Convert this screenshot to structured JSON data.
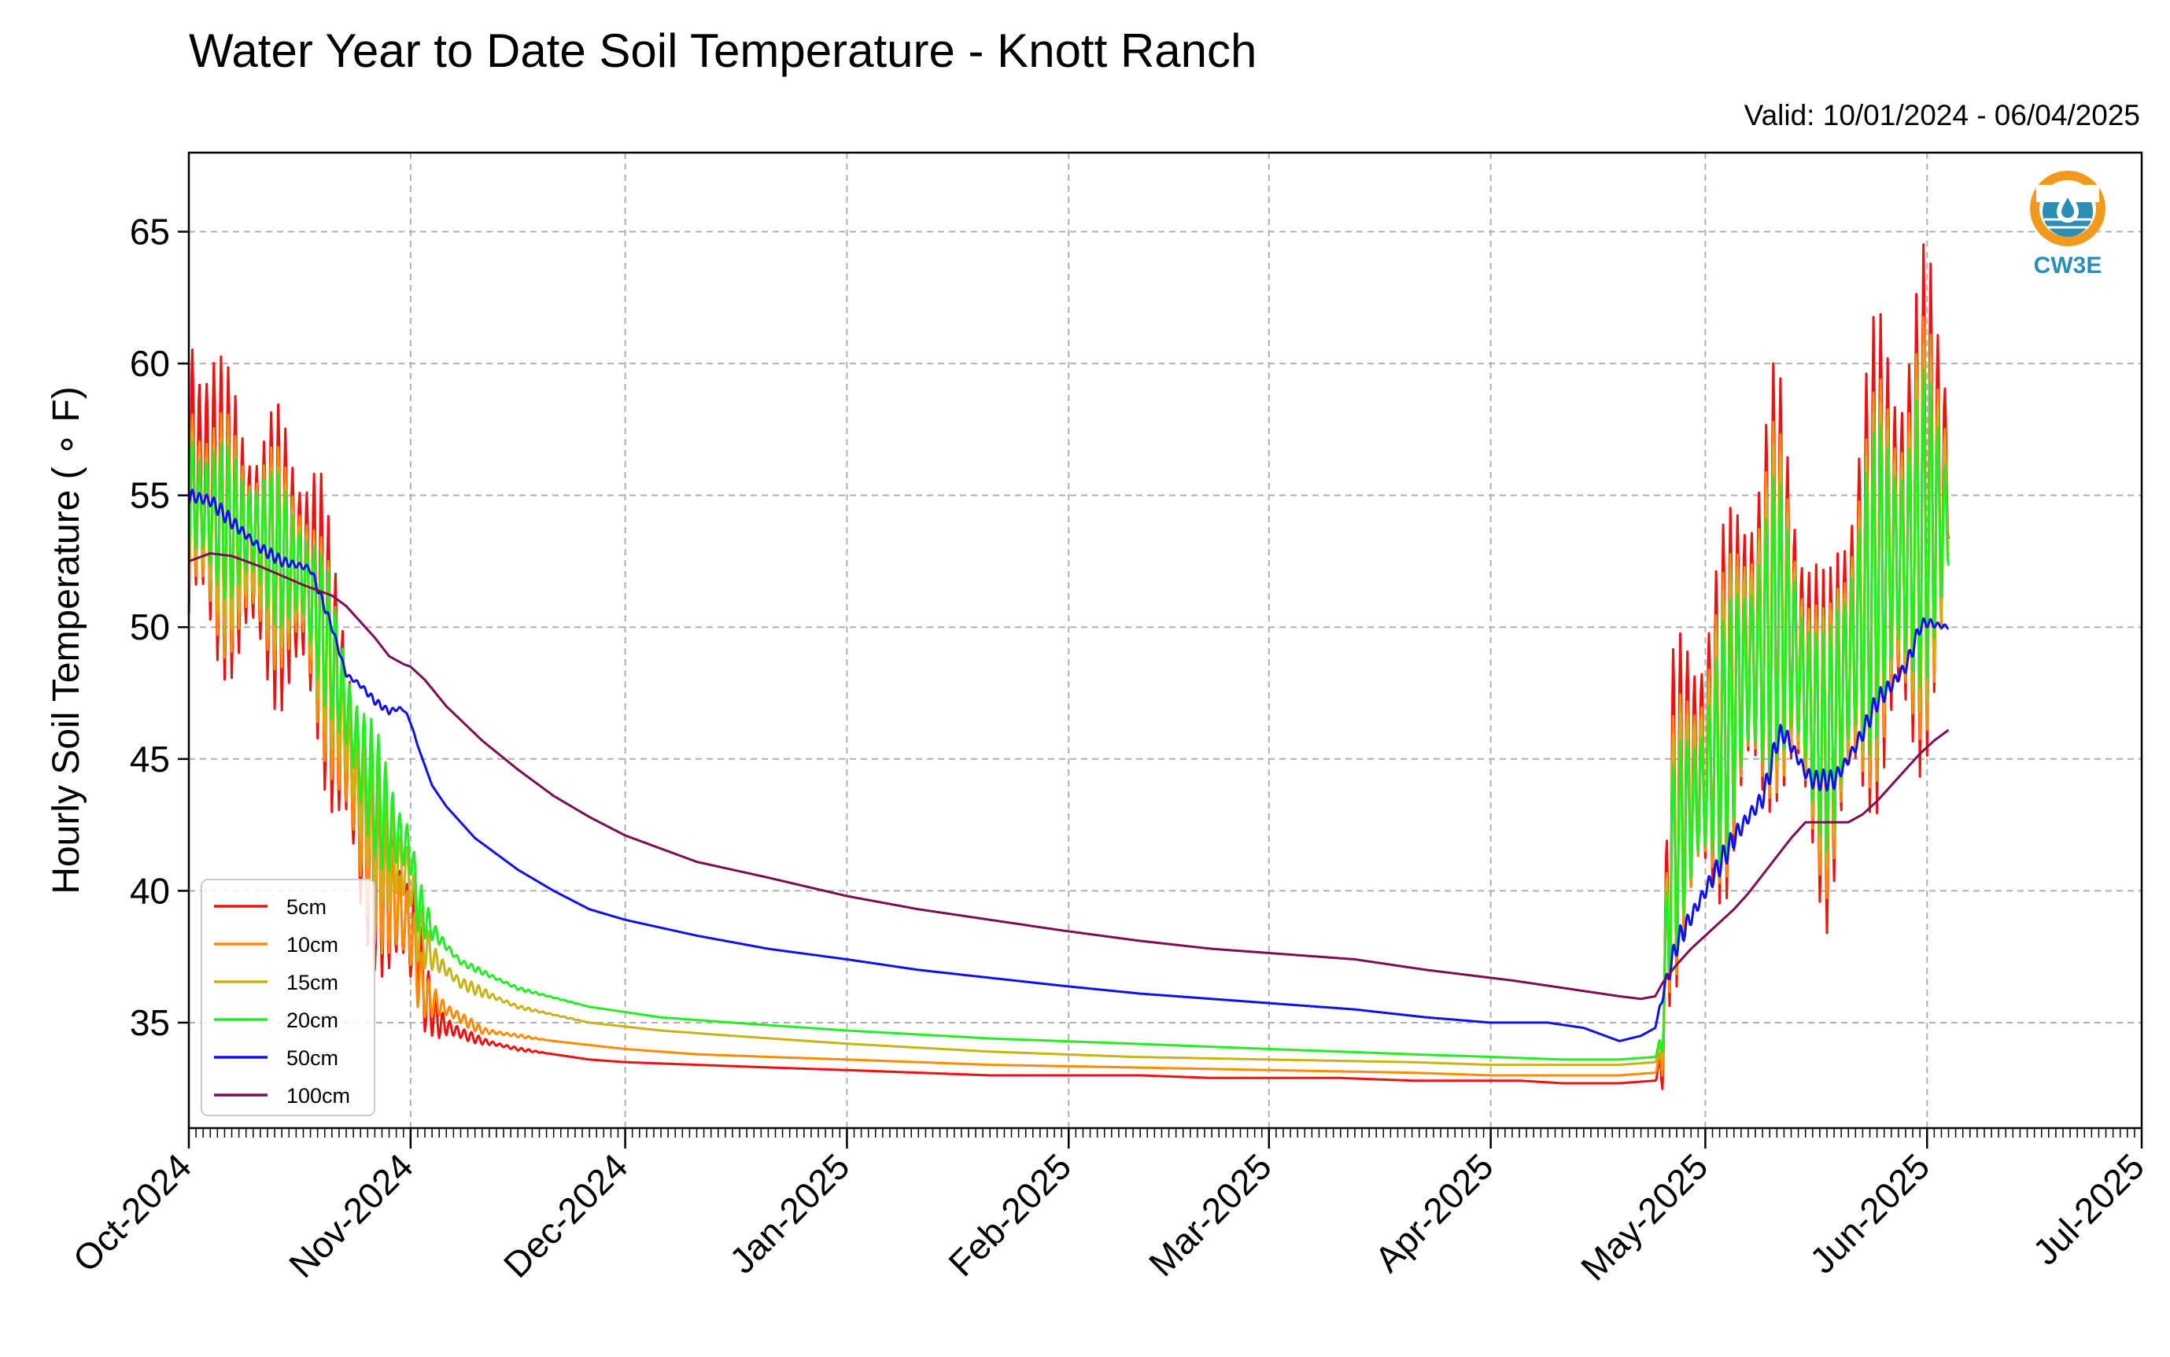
{
  "header": {
    "title": "Water Year to Date Soil Temperature - Knott Ranch",
    "valid": "Valid: 10/01/2024 - 06/04/2025"
  },
  "logo": {
    "text": "CW3E",
    "icon": "water-drop-logo-icon",
    "ring_color": "#f39a1e",
    "water_color": "#2b8fb5"
  },
  "chart_data": {
    "type": "line",
    "title": "Water Year to Date Soil Temperature - Knott Ranch",
    "xlabel": "",
    "ylabel": "Hourly Soil Temperature ( ∘ F)",
    "x_unit": "days since 2024-10-01",
    "xlim": [
      0,
      273
    ],
    "ylim": [
      31,
      68
    ],
    "grid": true,
    "legend_position": "lower-left",
    "x_ticks": [
      {
        "x": 0,
        "label": "Oct-2024"
      },
      {
        "x": 31,
        "label": "Nov-2024"
      },
      {
        "x": 61,
        "label": "Dec-2024"
      },
      {
        "x": 92,
        "label": "Jan-2025"
      },
      {
        "x": 123,
        "label": "Feb-2025"
      },
      {
        "x": 151,
        "label": "Mar-2025"
      },
      {
        "x": 182,
        "label": "Apr-2025"
      },
      {
        "x": 212,
        "label": "May-2025"
      },
      {
        "x": 243,
        "label": "Jun-2025"
      },
      {
        "x": 273,
        "label": "Jul-2025"
      }
    ],
    "y_ticks": [
      35,
      40,
      45,
      50,
      55,
      60,
      65
    ],
    "series": [
      {
        "name": "5cm",
        "color": "#ee1111",
        "x": [
          0,
          3,
          5,
          7,
          10,
          13,
          16,
          18,
          20,
          22,
          24,
          26,
          28,
          30,
          31,
          32,
          33,
          35,
          38,
          41,
          46,
          51,
          56,
          61,
          71,
          81,
          92,
          102,
          112,
          123,
          133,
          143,
          151,
          161,
          171,
          182,
          186,
          192,
          197,
          200,
          205,
          206,
          207,
          209,
          212,
          215,
          217,
          220,
          222,
          224,
          227,
          229,
          231,
          233,
          235,
          237,
          240,
          242,
          243,
          245,
          246
        ],
        "y": [
          56,
          55,
          54,
          53.5,
          53,
          52.5,
          52,
          51,
          48,
          46,
          43,
          41,
          40,
          39,
          38.5,
          38,
          36,
          35,
          34.6,
          34.3,
          34.0,
          33.8,
          33.6,
          33.5,
          33.4,
          33.3,
          33.2,
          33.1,
          33.0,
          33.0,
          33.0,
          32.9,
          32.9,
          32.9,
          32.8,
          32.8,
          32.8,
          32.7,
          32.7,
          32.7,
          32.8,
          33.5,
          42,
          44,
          45,
          47,
          49,
          50,
          52,
          50,
          47,
          45,
          48,
          50,
          52,
          53,
          53,
          54,
          55,
          55,
          56
        ],
        "amp": [
          5.5,
          5.5,
          4.5,
          4.5,
          4,
          4.5,
          4.5,
          4.5,
          4,
          4,
          4,
          3,
          3,
          2,
          2,
          1.5,
          1,
          0.6,
          0.2,
          0.1,
          0.05,
          0,
          0,
          0,
          0,
          0,
          0,
          0,
          0,
          0,
          0,
          0,
          0,
          0,
          0,
          0,
          0,
          0,
          0,
          0,
          0,
          1,
          5,
          5,
          5,
          5.5,
          6,
          6,
          6.5,
          6,
          5,
          5,
          6,
          6.5,
          7,
          7.5,
          7.5,
          7.5,
          7.5,
          6,
          4
        ]
      },
      {
        "name": "10cm",
        "color": "#ff8c00",
        "x": [
          0,
          5,
          10,
          16,
          20,
          24,
          28,
          31,
          32,
          33,
          36,
          41,
          51,
          61,
          71,
          81,
          92,
          112,
          132,
          151,
          171,
          182,
          192,
          200,
          205,
          206,
          207,
          209,
          212,
          215,
          217,
          220,
          222,
          224,
          227,
          229,
          231,
          233,
          235,
          237,
          240,
          242,
          243,
          245,
          246
        ],
        "y": [
          55,
          53.5,
          53,
          52,
          48,
          43,
          40,
          38.5,
          37,
          36,
          35.5,
          34.7,
          34.3,
          34.0,
          33.8,
          33.7,
          33.6,
          33.4,
          33.3,
          33.2,
          33.1,
          33.0,
          33.0,
          33.0,
          33.1,
          33.8,
          41,
          43,
          44.5,
          46.5,
          48.5,
          49.5,
          51,
          49.5,
          46.5,
          45,
          47.5,
          49.5,
          51,
          52.5,
          52.5,
          53.5,
          54,
          54,
          55
        ],
        "amp": [
          3.8,
          3.5,
          3.2,
          3.2,
          3,
          2.8,
          2.4,
          1.5,
          1.2,
          0.6,
          0.3,
          0.1,
          0,
          0,
          0,
          0,
          0,
          0,
          0,
          0,
          0,
          0,
          0,
          0,
          0,
          0.8,
          3.8,
          4,
          4,
          4.5,
          5,
          5,
          5.5,
          5,
          4,
          4,
          5,
          5.5,
          5.5,
          6,
          6,
          6,
          6,
          5,
          3.5
        ]
      },
      {
        "name": "15cm",
        "color": "#c8b414",
        "x": [
          0,
          5,
          10,
          16,
          20,
          24,
          28,
          31,
          32,
          34,
          38,
          46,
          56,
          66,
          76,
          92,
          112,
          132,
          151,
          171,
          182,
          192,
          200,
          205,
          206,
          207,
          209,
          212,
          215,
          217,
          220,
          222,
          224,
          227,
          229,
          231,
          233,
          235,
          237,
          240,
          242,
          243,
          245,
          246
        ],
        "y": [
          55,
          53.5,
          53,
          52,
          48.5,
          44,
          41.5,
          40.5,
          38.5,
          37.5,
          36.5,
          35.6,
          35.0,
          34.7,
          34.5,
          34.2,
          33.9,
          33.7,
          33.6,
          33.5,
          33.4,
          33.4,
          33.4,
          33.5,
          34.2,
          41,
          43,
          44.5,
          46.5,
          48.5,
          49.5,
          51,
          49.5,
          46.5,
          45.5,
          47.5,
          49.5,
          51,
          52.5,
          52.5,
          53.5,
          54,
          54,
          55
        ],
        "amp": [
          3,
          2.8,
          2.6,
          2.6,
          2.5,
          2.2,
          2,
          1.2,
          1,
          0.4,
          0.2,
          0.05,
          0,
          0,
          0,
          0,
          0,
          0,
          0,
          0,
          0,
          0,
          0,
          0,
          0.6,
          3.3,
          3.5,
          3.5,
          4,
          4.5,
          4.5,
          4.8,
          4.5,
          3.5,
          3.5,
          4.5,
          4.8,
          5,
          5.2,
          5.2,
          5.2,
          5.2,
          4.5,
          3
        ]
      },
      {
        "name": "20cm",
        "color": "#22ee22",
        "x": [
          0,
          5,
          10,
          16,
          20,
          24,
          28,
          31,
          32,
          34,
          38,
          46,
          56,
          66,
          76,
          92,
          112,
          132,
          151,
          171,
          182,
          192,
          200,
          205,
          206,
          207,
          209,
          212,
          215,
          217,
          220,
          222,
          224,
          227,
          229,
          231,
          233,
          235,
          237,
          240,
          242,
          243,
          245,
          246
        ],
        "y": [
          55,
          54,
          53.5,
          52,
          49,
          45,
          42.5,
          41.5,
          39.5,
          38.5,
          37.3,
          36.3,
          35.6,
          35.2,
          35.0,
          34.7,
          34.4,
          34.2,
          34.0,
          33.8,
          33.7,
          33.6,
          33.6,
          33.7,
          34.4,
          40.5,
          42.5,
          44,
          46,
          48,
          49,
          50.5,
          49.5,
          46.5,
          45.5,
          47.5,
          49.5,
          51,
          52.5,
          52.5,
          53.5,
          54,
          54,
          54
        ],
        "amp": [
          2.5,
          2.2,
          2.2,
          2.2,
          2,
          2,
          1.8,
          1,
          0.9,
          0.3,
          0.1,
          0.05,
          0,
          0,
          0,
          0,
          0,
          0,
          0,
          0,
          0,
          0,
          0,
          0,
          0.5,
          2.8,
          3,
          3,
          3.5,
          4,
          4,
          4.2,
          4,
          3,
          3,
          4,
          4.2,
          4.5,
          4.5,
          4.5,
          4.5,
          4.5,
          3.5,
          2.5
        ]
      },
      {
        "name": "50cm",
        "color": "#1010ee",
        "x": [
          0,
          3,
          6,
          10,
          13,
          16,
          17,
          18,
          20,
          22,
          24,
          26,
          28,
          29,
          30,
          31,
          32,
          34,
          36,
          40,
          46,
          51,
          56,
          61,
          71,
          81,
          92,
          102,
          112,
          122,
          133,
          143,
          153,
          163,
          173,
          182,
          190,
          195,
          200,
          203,
          205,
          206,
          208,
          210,
          212,
          214,
          216,
          218,
          220,
          221,
          222,
          223,
          224,
          226,
          227,
          228,
          230,
          232,
          234,
          236,
          238,
          240,
          241,
          242,
          243,
          244,
          246
        ],
        "y": [
          55,
          54.8,
          54,
          53,
          52.5,
          52.3,
          52.2,
          51.5,
          50,
          48.2,
          47.8,
          47.2,
          46.8,
          46.9,
          46.9,
          46.4,
          45.5,
          44,
          43.2,
          42,
          40.8,
          40,
          39.3,
          38.9,
          38.3,
          37.8,
          37.4,
          37.0,
          36.7,
          36.4,
          36.1,
          35.9,
          35.7,
          35.5,
          35.2,
          35.0,
          35.0,
          34.8,
          34.3,
          34.5,
          34.8,
          36,
          38,
          39,
          40,
          41,
          42,
          42.8,
          43.5,
          44.5,
          45.7,
          46,
          45.5,
          44.5,
          44.2,
          44.2,
          44.2,
          45,
          46,
          47.2,
          47.8,
          48.5,
          49.2,
          50,
          50.2,
          50.1,
          50.0
        ],
        "amp": [
          0.3,
          0.25,
          0.2,
          0.2,
          0.15,
          0.15,
          0.15,
          0.15,
          0.1,
          0.1,
          0.1,
          0.1,
          0.1,
          0.1,
          0.1,
          0.05,
          0,
          0,
          0,
          0,
          0,
          0,
          0,
          0,
          0,
          0,
          0,
          0,
          0,
          0,
          0,
          0,
          0,
          0,
          0,
          0,
          0,
          0,
          0,
          0,
          0,
          0.2,
          0.35,
          0.35,
          0.35,
          0.35,
          0.35,
          0.35,
          0.35,
          0.35,
          0.35,
          0.35,
          0.3,
          0.3,
          0.3,
          0.3,
          0.3,
          0.3,
          0.3,
          0.3,
          0.3,
          0.3,
          0.3,
          0.2,
          0.15,
          0.1,
          0.1
        ]
      },
      {
        "name": "100cm",
        "color": "#7d0d55",
        "x": [
          0,
          3,
          6,
          10,
          16,
          18,
          20,
          22,
          24,
          26,
          28,
          30,
          31,
          33,
          36,
          41,
          46,
          51,
          56,
          61,
          66,
          71,
          81,
          92,
          102,
          112,
          122,
          133,
          143,
          153,
          163,
          173,
          182,
          185,
          190,
          195,
          200,
          203,
          205,
          206,
          208,
          210,
          212,
          214,
          216,
          218,
          220,
          222,
          224,
          226,
          228,
          230,
          232,
          234,
          236,
          238,
          240,
          242,
          244,
          246
        ],
        "y": [
          52.5,
          52.8,
          52.7,
          52.3,
          51.6,
          51.4,
          51.2,
          50.8,
          50.2,
          49.6,
          48.9,
          48.6,
          48.5,
          48.0,
          47.0,
          45.7,
          44.6,
          43.6,
          42.8,
          42.1,
          41.6,
          41.1,
          40.5,
          39.8,
          39.3,
          38.9,
          38.5,
          38.1,
          37.8,
          37.6,
          37.4,
          37.0,
          36.7,
          36.6,
          36.4,
          36.2,
          36.0,
          35.9,
          36.0,
          36.5,
          37.2,
          37.8,
          38.3,
          38.8,
          39.3,
          39.9,
          40.6,
          41.3,
          42.0,
          42.6,
          42.6,
          42.6,
          42.6,
          42.9,
          43.4,
          44.0,
          44.6,
          45.2,
          45.7,
          46.1
        ],
        "amp": [
          0,
          0,
          0,
          0,
          0,
          0,
          0,
          0,
          0,
          0,
          0,
          0,
          0,
          0,
          0,
          0,
          0,
          0,
          0,
          0,
          0,
          0,
          0,
          0,
          0,
          0,
          0,
          0,
          0,
          0,
          0,
          0,
          0,
          0,
          0,
          0,
          0,
          0,
          0,
          0,
          0,
          0,
          0,
          0,
          0,
          0,
          0,
          0,
          0,
          0,
          0,
          0,
          0,
          0,
          0,
          0,
          0,
          0,
          0,
          0
        ]
      }
    ]
  }
}
